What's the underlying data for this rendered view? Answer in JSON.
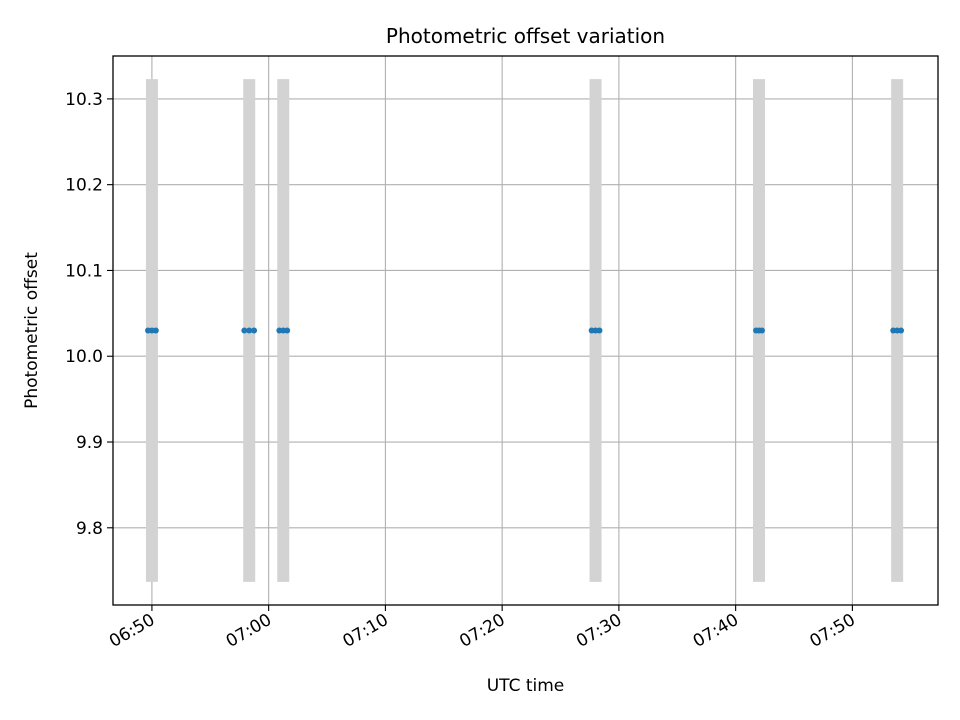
{
  "chart_data": {
    "type": "scatter",
    "title": "Photometric offset variation",
    "xlabel": "UTC time",
    "ylabel": "Photometric offset",
    "x_axis_type": "time",
    "xlim": [
      "06:46:40",
      "07:57:20"
    ],
    "ylim": [
      9.71,
      10.35
    ],
    "x_ticks": [
      "06:50",
      "07:00",
      "07:10",
      "07:20",
      "07:30",
      "07:40",
      "07:50"
    ],
    "y_ticks": [
      9.8,
      9.9,
      10.0,
      10.1,
      10.2,
      10.3
    ],
    "y_tick_labels": [
      "9.8",
      "9.9",
      "10.0",
      "10.1",
      "10.2",
      "10.3"
    ],
    "x_tick_rotation": "slanted",
    "grid": true,
    "legend": "none",
    "error_bars": {
      "color": "#d3d3d3",
      "low": 9.737,
      "high": 10.323,
      "x": [
        "06:50:00",
        "06:58:20",
        "07:01:15",
        "07:28:00",
        "07:42:00",
        "07:53:50"
      ]
    },
    "series": [
      {
        "color": "#1f77b4",
        "points": [
          {
            "x": "06:49:40",
            "y": 10.03
          },
          {
            "x": "06:50:00",
            "y": 10.03
          },
          {
            "x": "06:50:20",
            "y": 10.03
          },
          {
            "x": "06:57:55",
            "y": 10.03
          },
          {
            "x": "06:58:20",
            "y": 10.03
          },
          {
            "x": "06:58:45",
            "y": 10.03
          },
          {
            "x": "07:00:55",
            "y": 10.03
          },
          {
            "x": "07:01:15",
            "y": 10.03
          },
          {
            "x": "07:01:35",
            "y": 10.03
          },
          {
            "x": "07:27:40",
            "y": 10.03
          },
          {
            "x": "07:28:00",
            "y": 10.03
          },
          {
            "x": "07:28:20",
            "y": 10.03
          },
          {
            "x": "07:41:45",
            "y": 10.03
          },
          {
            "x": "07:42:00",
            "y": 10.03
          },
          {
            "x": "07:42:15",
            "y": 10.03
          },
          {
            "x": "07:53:30",
            "y": 10.03
          },
          {
            "x": "07:53:50",
            "y": 10.03
          },
          {
            "x": "07:54:10",
            "y": 10.03
          }
        ]
      }
    ]
  }
}
